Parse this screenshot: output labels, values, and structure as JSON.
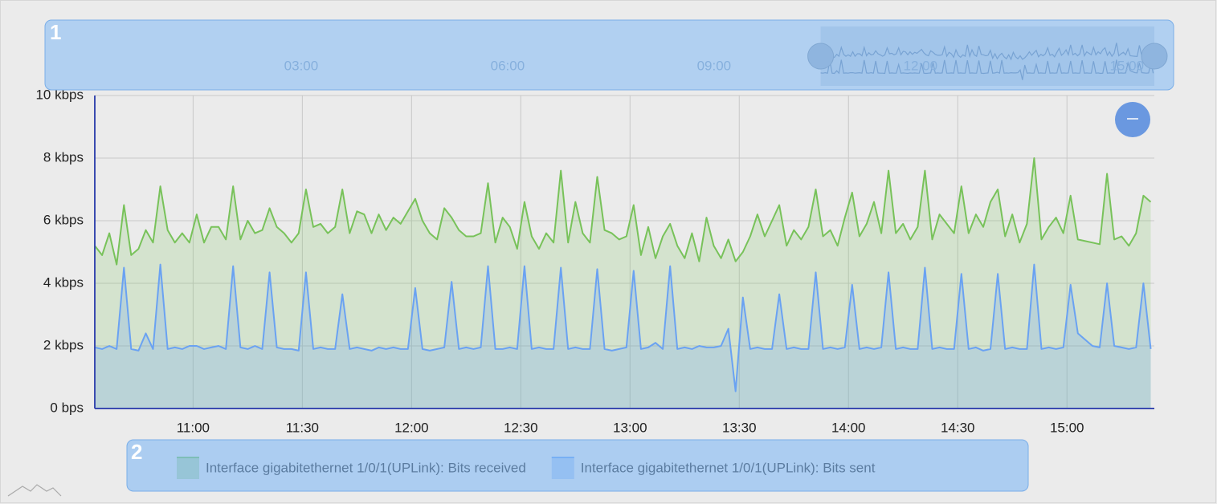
{
  "chart_data": {
    "type": "area",
    "annotations": [
      "1",
      "2"
    ],
    "x": [
      "10:33",
      "10:35",
      "10:37",
      "10:39",
      "10:41",
      "10:43",
      "10:45",
      "10:47",
      "10:49",
      "10:51",
      "10:53",
      "10:55",
      "10:57",
      "10:59",
      "11:01",
      "11:03",
      "11:05",
      "11:07",
      "11:09",
      "11:11",
      "11:13",
      "11:15",
      "11:17",
      "11:19",
      "11:21",
      "11:23",
      "11:25",
      "11:27",
      "11:29",
      "11:31",
      "11:33",
      "11:35",
      "11:37",
      "11:39",
      "11:41",
      "11:43",
      "11:45",
      "11:47",
      "11:49",
      "11:51",
      "11:53",
      "11:55",
      "11:57",
      "11:59",
      "12:01",
      "12:03",
      "12:05",
      "12:07",
      "12:09",
      "12:11",
      "12:13",
      "12:15",
      "12:17",
      "12:19",
      "12:21",
      "12:23",
      "12:25",
      "12:27",
      "12:29",
      "12:31",
      "12:33",
      "12:35",
      "12:37",
      "12:39",
      "12:41",
      "12:43",
      "12:45",
      "12:47",
      "12:49",
      "12:51",
      "12:53",
      "12:55",
      "12:57",
      "12:59",
      "13:01",
      "13:03",
      "13:05",
      "13:07",
      "13:09",
      "13:11",
      "13:13",
      "13:15",
      "13:17",
      "13:19",
      "13:21",
      "13:23",
      "13:25",
      "13:27",
      "13:29",
      "13:31",
      "13:33",
      "13:35",
      "13:37",
      "13:39",
      "13:41",
      "13:43",
      "13:45",
      "13:47",
      "13:49",
      "13:51",
      "13:53",
      "13:55",
      "13:57",
      "13:59",
      "14:01",
      "14:03",
      "14:05",
      "14:07",
      "14:09",
      "14:11",
      "14:13",
      "14:15",
      "14:17",
      "14:19",
      "14:21",
      "14:23",
      "14:25",
      "14:27",
      "14:29",
      "14:31",
      "14:33",
      "14:35",
      "14:37",
      "14:39",
      "14:41",
      "14:43",
      "14:45",
      "14:47",
      "14:49",
      "14:51",
      "14:53",
      "14:55",
      "14:57",
      "14:59",
      "15:01",
      "15:03",
      "15:05",
      "15:07",
      "15:09",
      "15:11",
      "15:13",
      "15:15",
      "15:17",
      "15:19",
      "15:21",
      "15:23"
    ],
    "series": [
      {
        "name": "Interface gigabitethernet 1/0/1(UPLink): Bits received",
        "color": "#78c25a",
        "values": [
          5.2,
          4.9,
          5.6,
          4.6,
          6.5,
          4.9,
          5.1,
          5.7,
          5.3,
          7.1,
          5.7,
          5.3,
          5.6,
          5.3,
          6.2,
          5.3,
          5.8,
          5.8,
          5.4,
          7.1,
          5.4,
          6.0,
          5.6,
          5.7,
          6.4,
          5.8,
          5.6,
          5.3,
          5.6,
          7.0,
          5.8,
          5.9,
          5.6,
          5.8,
          7.0,
          5.6,
          6.3,
          6.2,
          5.6,
          6.2,
          5.7,
          6.1,
          5.9,
          6.3,
          6.7,
          6.0,
          5.6,
          5.4,
          6.4,
          6.1,
          5.7,
          5.5,
          5.5,
          5.6,
          7.2,
          5.3,
          6.1,
          5.8,
          5.1,
          6.6,
          5.5,
          5.1,
          5.6,
          5.3,
          7.6,
          5.3,
          6.6,
          5.6,
          5.3,
          7.4,
          5.7,
          5.6,
          5.4,
          5.5,
          6.5,
          4.9,
          5.8,
          4.8,
          5.5,
          5.9,
          5.2,
          4.8,
          5.6,
          4.7,
          6.1,
          5.2,
          4.8,
          5.4,
          4.7,
          5.0,
          5.5,
          6.2,
          5.5,
          6.0,
          6.5,
          5.2,
          5.7,
          5.4,
          5.8,
          7.0,
          5.5,
          5.7,
          5.2,
          6.1,
          6.9,
          5.5,
          5.9,
          6.6,
          5.6,
          7.6,
          5.6,
          5.9,
          5.4,
          5.8,
          7.6,
          5.4,
          6.2,
          5.9,
          5.6,
          7.1,
          5.6,
          6.2,
          5.8,
          6.6,
          7.0,
          5.5,
          6.2,
          5.3,
          5.9,
          8.0,
          5.4,
          5.8,
          6.1,
          5.6,
          6.8,
          5.4,
          5.35,
          5.3,
          5.25,
          7.5,
          5.4,
          5.5,
          5.2,
          5.6,
          6.8,
          6.6
        ]
      },
      {
        "name": "Interface gigabitethernet 1/0/1(UPLink): Bits sent",
        "color": "#6aa2f2",
        "values": [
          1.95,
          1.9,
          2.0,
          1.9,
          4.5,
          1.9,
          1.85,
          2.4,
          1.9,
          4.6,
          1.9,
          1.95,
          1.9,
          2.0,
          2.0,
          1.9,
          1.95,
          2.0,
          1.9,
          4.55,
          1.95,
          1.9,
          2.0,
          1.9,
          4.35,
          1.95,
          1.9,
          1.9,
          1.85,
          4.35,
          1.9,
          1.95,
          1.9,
          1.9,
          3.65,
          1.9,
          1.95,
          1.9,
          1.85,
          1.95,
          1.9,
          1.95,
          1.9,
          1.9,
          3.85,
          1.9,
          1.85,
          1.9,
          1.95,
          4.05,
          1.9,
          1.95,
          1.9,
          1.95,
          4.55,
          1.9,
          1.9,
          1.95,
          1.9,
          4.55,
          1.9,
          1.95,
          1.9,
          1.9,
          4.5,
          1.9,
          1.95,
          1.9,
          1.9,
          4.45,
          1.9,
          1.85,
          1.9,
          1.95,
          4.4,
          1.9,
          1.95,
          2.1,
          1.9,
          4.55,
          1.9,
          1.95,
          1.9,
          2.0,
          1.95,
          1.95,
          2.0,
          2.55,
          0.55,
          3.55,
          1.9,
          1.95,
          1.9,
          1.9,
          3.65,
          1.9,
          1.95,
          1.9,
          1.9,
          4.35,
          1.9,
          1.95,
          1.9,
          1.95,
          3.95,
          1.9,
          1.95,
          1.9,
          1.95,
          4.35,
          1.9,
          1.95,
          1.9,
          1.9,
          4.5,
          1.9,
          1.95,
          1.9,
          1.9,
          4.3,
          1.9,
          1.95,
          1.85,
          1.9,
          4.3,
          1.9,
          1.95,
          1.9,
          1.9,
          4.6,
          1.9,
          1.95,
          1.9,
          1.95,
          3.95,
          2.4,
          2.2,
          2.0,
          1.95,
          4.0,
          2.0,
          1.95,
          1.9,
          1.95,
          4.0,
          1.9
        ]
      }
    ],
    "xlim": [
      "10:33",
      "15:24"
    ],
    "xticks": [
      "11:00",
      "11:30",
      "12:00",
      "12:30",
      "13:00",
      "13:30",
      "14:00",
      "14:30",
      "15:00"
    ],
    "ylim": [
      0,
      10
    ],
    "yticks": [
      {
        "value": 0,
        "label": "0 bps"
      },
      {
        "value": 2,
        "label": "2 kbps"
      },
      {
        "value": 4,
        "label": "4 kbps"
      },
      {
        "value": 6,
        "label": "6 kbps"
      },
      {
        "value": 8,
        "label": "8 kbps"
      },
      {
        "value": 10,
        "label": "10 kbps"
      }
    ],
    "grid": true,
    "navigator": {
      "xlim": [
        "00:00",
        "15:24"
      ],
      "xticks": [
        "03:00",
        "06:00",
        "09:00",
        "12:00",
        "15:00"
      ]
    }
  }
}
